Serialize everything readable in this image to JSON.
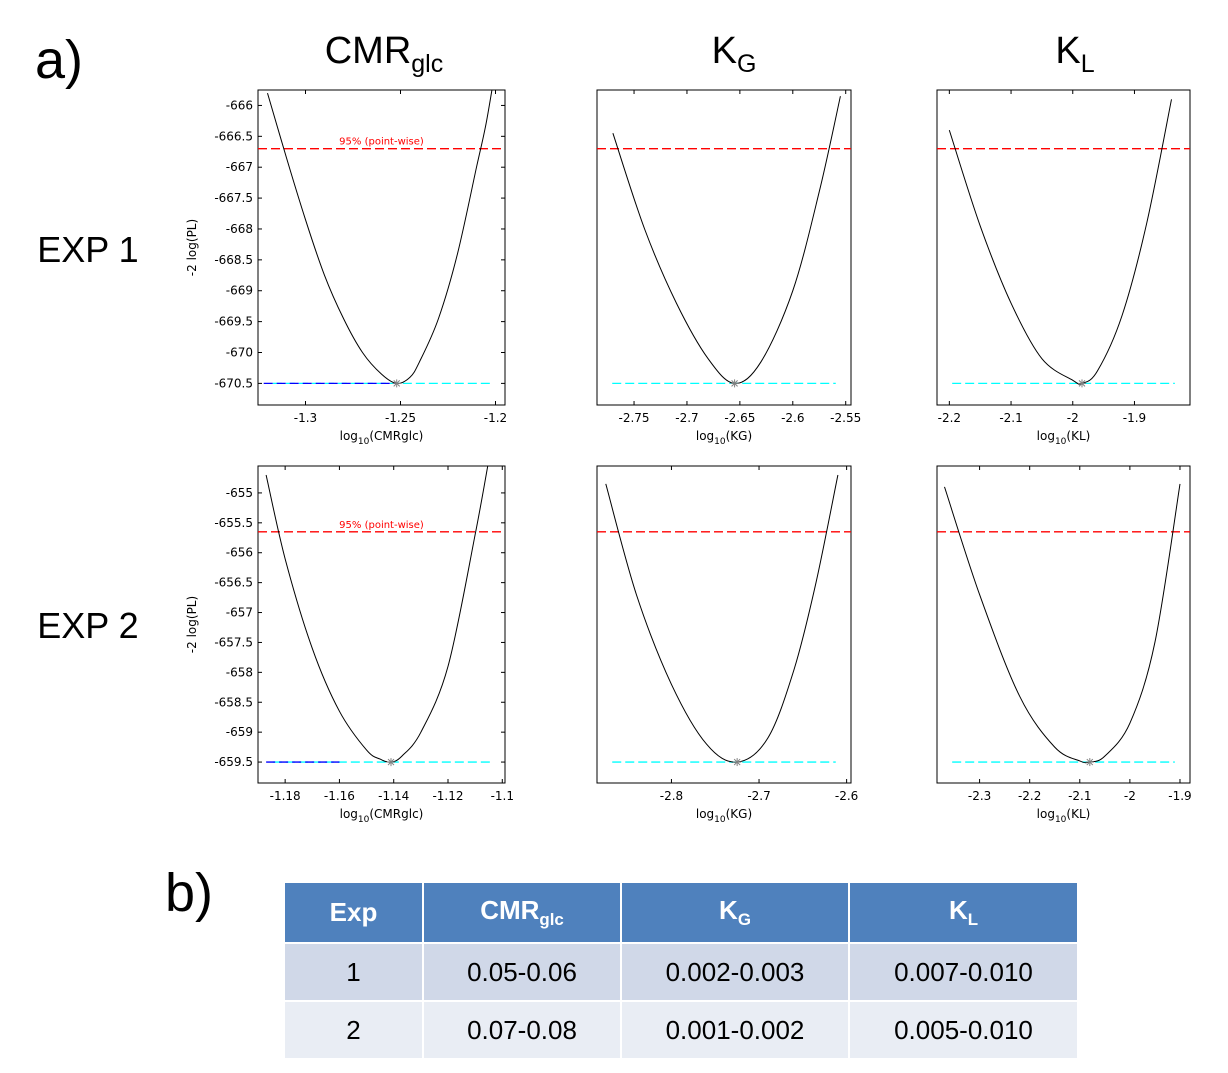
{
  "panel_a_label": "a)",
  "panel_b_label": "b)",
  "column_headers": [
    {
      "main": "CMR",
      "sub": "glc"
    },
    {
      "main": "K",
      "sub": "G"
    },
    {
      "main": "K",
      "sub": "L"
    }
  ],
  "row_labels": [
    "EXP 1",
    "EXP 2"
  ],
  "colors": {
    "profile_line": "#000000",
    "confidence_line": "#ff0000",
    "optimum_line": "#00ffff",
    "optimum_line_left": "#0000ff",
    "optimum_marker": "#808080",
    "table_header_bg": "#4f81bd",
    "table_row1_bg": "#d0d8e8",
    "table_row2_bg": "#e9edf4"
  },
  "chart_data": [
    {
      "type": "line",
      "row": 0,
      "col": 0,
      "ylabel": "-2 log(PL)",
      "xlabel_main": "log",
      "xlabel_sub": "10",
      "xlabel_arg": "(CMRglc)",
      "xlim": [
        -1.325,
        -1.195
      ],
      "ylim": [
        -670.85,
        -665.75
      ],
      "xticks": [
        -1.3,
        -1.25,
        -1.2
      ],
      "xtick_labels": [
        "-1.3",
        "-1.25",
        "-1.2"
      ],
      "yticks": [
        -666,
        -666.5,
        -667,
        -667.5,
        -668,
        -668.5,
        -669,
        -669.5,
        -670,
        -670.5
      ],
      "ytick_labels": [
        "-666",
        "-666.5",
        "-667",
        "-667.5",
        "-668",
        "-668.5",
        "-669",
        "-669.5",
        "-670",
        "-670.5"
      ],
      "profile": {
        "x": [
          -1.32,
          -1.31,
          -1.3,
          -1.29,
          -1.28,
          -1.27,
          -1.26,
          -1.252,
          -1.245,
          -1.24,
          -1.23,
          -1.22,
          -1.21,
          -1.205,
          -1.2
        ],
        "y": [
          -665.8,
          -666.85,
          -667.85,
          -668.75,
          -669.45,
          -670.0,
          -670.35,
          -670.5,
          -670.4,
          -670.15,
          -669.45,
          -668.4,
          -667.0,
          -666.3,
          -665.4
        ]
      },
      "optimum": {
        "x": -1.252,
        "y": -670.5
      },
      "confidence_level": -666.7,
      "confidence_label": "95% (point-wise)",
      "optimum_level": -670.5,
      "optimum_blue_span": [
        -1.322,
        -1.252
      ]
    },
    {
      "type": "line",
      "row": 0,
      "col": 1,
      "ylabel": "",
      "xlabel_main": "log",
      "xlabel_sub": "10",
      "xlabel_arg": "(KG)",
      "xlim": [
        -2.785,
        -2.545
      ],
      "ylim": [
        -670.85,
        -665.75
      ],
      "xticks": [
        -2.75,
        -2.7,
        -2.65,
        -2.6,
        -2.55
      ],
      "xtick_labels": [
        "-2.75",
        "-2.7",
        "-2.65",
        "-2.6",
        "-2.55"
      ],
      "yticks": [],
      "ytick_labels": [],
      "profile": {
        "x": [
          -2.77,
          -2.74,
          -2.71,
          -2.68,
          -2.655,
          -2.63,
          -2.6,
          -2.575,
          -2.555
        ],
        "y": [
          -666.45,
          -668.0,
          -669.2,
          -670.1,
          -670.5,
          -670.15,
          -669.0,
          -667.4,
          -665.85
        ]
      },
      "optimum": {
        "x": -2.655,
        "y": -670.5
      },
      "confidence_level": -666.7,
      "confidence_label": "",
      "optimum_level": -670.5,
      "optimum_blue_span": null
    },
    {
      "type": "line",
      "row": 0,
      "col": 2,
      "ylabel": "",
      "xlabel_main": "log",
      "xlabel_sub": "10",
      "xlabel_arg": "(KL)",
      "xlim": [
        -2.22,
        -1.81
      ],
      "ylim": [
        -670.85,
        -665.75
      ],
      "xticks": [
        -2.2,
        -2.1,
        -2,
        -1.9
      ],
      "xtick_labels": [
        "-2.2",
        "-2.1",
        "-2",
        "-1.9"
      ],
      "yticks": [],
      "ytick_labels": [],
      "profile": {
        "x": [
          -2.2,
          -2.15,
          -2.1,
          -2.05,
          -2.0,
          -1.985,
          -1.96,
          -1.92,
          -1.88,
          -1.84
        ],
        "y": [
          -666.4,
          -667.95,
          -669.2,
          -670.1,
          -670.45,
          -670.5,
          -670.3,
          -669.4,
          -667.9,
          -665.9
        ]
      },
      "optimum": {
        "x": -1.985,
        "y": -670.5
      },
      "confidence_level": -666.7,
      "confidence_label": "",
      "optimum_level": -670.5,
      "optimum_blue_span": null
    },
    {
      "type": "line",
      "row": 1,
      "col": 0,
      "ylabel": "-2 log(PL)",
      "xlabel_main": "log",
      "xlabel_sub": "10",
      "xlabel_arg": "(CMRglc)",
      "xlim": [
        -1.19,
        -1.099
      ],
      "ylim": [
        -659.85,
        -654.55
      ],
      "xticks": [
        -1.18,
        -1.16,
        -1.14,
        -1.12,
        -1.1
      ],
      "xtick_labels": [
        "-1.18",
        "-1.16",
        "-1.14",
        "-1.12",
        "-1.1"
      ],
      "yticks": [
        -655,
        -655.5,
        -656,
        -656.5,
        -657,
        -657.5,
        -658,
        -658.5,
        -659,
        -659.5
      ],
      "ytick_labels": [
        "-655",
        "-655.5",
        "-656",
        "-656.5",
        "-657",
        "-657.5",
        "-658",
        "-658.5",
        "-659",
        "-659.5"
      ],
      "profile": {
        "x": [
          -1.187,
          -1.18,
          -1.17,
          -1.16,
          -1.15,
          -1.145,
          -1.141,
          -1.137,
          -1.13,
          -1.12,
          -1.11,
          -1.104
        ],
        "y": [
          -654.7,
          -656.1,
          -657.6,
          -658.65,
          -659.3,
          -659.45,
          -659.5,
          -659.4,
          -659.0,
          -657.9,
          -655.7,
          -654.2
        ]
      },
      "optimum": {
        "x": -1.141,
        "y": -659.5
      },
      "confidence_level": -655.65,
      "confidence_label": "95% (point-wise)",
      "optimum_level": -659.5,
      "optimum_blue_span": [
        -1.187,
        -1.16
      ]
    },
    {
      "type": "line",
      "row": 1,
      "col": 1,
      "ylabel": "",
      "xlabel_main": "log",
      "xlabel_sub": "10",
      "xlabel_arg": "(KG)",
      "xlim": [
        -2.885,
        -2.595
      ],
      "ylim": [
        -659.85,
        -654.55
      ],
      "xticks": [
        -2.8,
        -2.7,
        -2.6
      ],
      "xtick_labels": [
        "-2.8",
        "-2.7",
        "-2.6"
      ],
      "yticks": [],
      "ytick_labels": [],
      "profile": {
        "x": [
          -2.875,
          -2.84,
          -2.8,
          -2.76,
          -2.725,
          -2.69,
          -2.66,
          -2.635,
          -2.61
        ],
        "y": [
          -654.85,
          -656.7,
          -658.2,
          -659.2,
          -659.5,
          -659.1,
          -657.95,
          -656.5,
          -654.7
        ]
      },
      "optimum": {
        "x": -2.725,
        "y": -659.5
      },
      "confidence_level": -655.65,
      "confidence_label": "",
      "optimum_level": -659.5,
      "optimum_blue_span": null
    },
    {
      "type": "line",
      "row": 1,
      "col": 2,
      "ylabel": "",
      "xlabel_main": "log",
      "xlabel_sub": "10",
      "xlabel_arg": "(KL)",
      "xlim": [
        -2.385,
        -1.88
      ],
      "ylim": [
        -659.85,
        -654.55
      ],
      "xticks": [
        -2.3,
        -2.2,
        -2.1,
        -2,
        -1.9
      ],
      "xtick_labels": [
        "-2.3",
        "-2.2",
        "-2.1",
        "-2",
        "-1.9"
      ],
      "yticks": [],
      "ytick_labels": [],
      "profile": {
        "x": [
          -2.37,
          -2.3,
          -2.22,
          -2.15,
          -2.1,
          -2.08,
          -2.05,
          -2.0,
          -1.95,
          -1.9
        ],
        "y": [
          -654.9,
          -656.7,
          -658.4,
          -659.25,
          -659.48,
          -659.5,
          -659.4,
          -658.85,
          -657.5,
          -654.85
        ]
      },
      "optimum": {
        "x": -2.08,
        "y": -659.5
      },
      "confidence_level": -655.65,
      "confidence_label": "",
      "optimum_level": -659.5,
      "optimum_blue_span": null
    }
  ],
  "table": {
    "headers": [
      {
        "main": "Exp",
        "sub": ""
      },
      {
        "main": "CMR",
        "sub": "glc"
      },
      {
        "main": "K",
        "sub": "G"
      },
      {
        "main": "K",
        "sub": "L"
      }
    ],
    "rows": [
      [
        "1",
        "0.05-0.06",
        "0.002-0.003",
        "0.007-0.010"
      ],
      [
        "2",
        "0.07-0.08",
        "0.001-0.002",
        "0.005-0.010"
      ]
    ]
  }
}
